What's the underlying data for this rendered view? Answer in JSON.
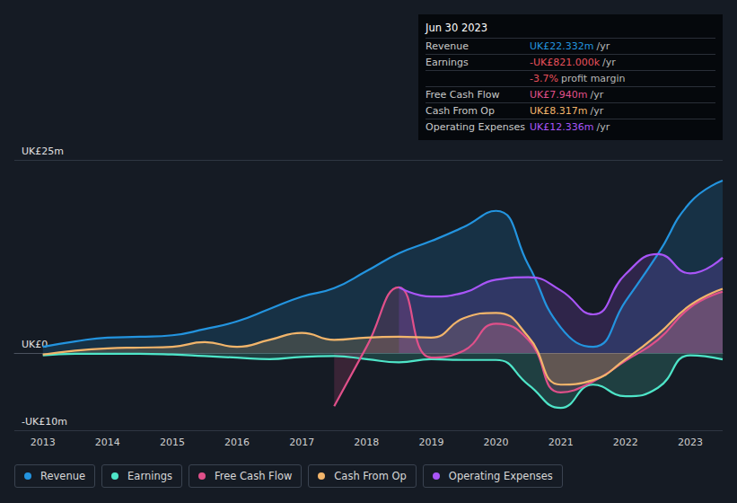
{
  "chart_data": {
    "type": "line",
    "x": [
      2013,
      2013.5,
      2014,
      2014.5,
      2015,
      2015.5,
      2016,
      2016.5,
      2017,
      2017.5,
      2018,
      2018.5,
      2019,
      2019.5,
      2020,
      2020.5,
      2021,
      2021.5,
      2022,
      2022.5,
      2023,
      2023.5
    ],
    "xlim": [
      2012.56,
      2023.5
    ],
    "xticks": [
      2013,
      2014,
      2015,
      2016,
      2017,
      2018,
      2019,
      2020,
      2021,
      2022,
      2023
    ],
    "ylim": [
      -10,
      25
    ],
    "yticks": [
      {
        "value": -10,
        "label": "-UK£10m"
      },
      {
        "value": 0,
        "label": "UK£0"
      },
      {
        "value": 25,
        "label": "UK£25m"
      }
    ],
    "grid": true,
    "legend": "bottom-left",
    "series": [
      {
        "name": "Revenue",
        "color": "#2394df",
        "values": [
          0.8,
          1.5,
          2.0,
          2.1,
          2.3,
          3.1,
          4.1,
          5.7,
          7.3,
          8.4,
          10.6,
          12.9,
          14.5,
          16.3,
          18.4,
          11.4,
          3.3,
          0.8,
          6.7,
          12.8,
          19.5,
          22.33
        ]
      },
      {
        "name": "Earnings",
        "color": "#4ee5c8",
        "values": [
          -0.3,
          -0.1,
          -0.1,
          -0.1,
          -0.2,
          -0.4,
          -0.6,
          -0.8,
          -0.5,
          -0.4,
          -0.8,
          -1.2,
          -0.8,
          -0.9,
          -0.9,
          -4.1,
          -7.1,
          -4.1,
          -5.6,
          -4.5,
          -0.3,
          -0.82
        ]
      },
      {
        "name": "Free Cash Flow",
        "color": "#e0508a",
        "values": [
          null,
          null,
          null,
          null,
          null,
          null,
          null,
          null,
          null,
          -6.9,
          0.8,
          8.5,
          -0.6,
          0.3,
          3.8,
          1.7,
          -5.1,
          -3.7,
          -1.0,
          1.7,
          5.9,
          7.94
        ]
      },
      {
        "name": "Cash From Op",
        "color": "#f2b56b",
        "values": [
          -0.2,
          0.3,
          0.6,
          0.7,
          0.8,
          1.4,
          0.8,
          1.7,
          2.6,
          1.7,
          2.0,
          2.1,
          2.0,
          4.5,
          5.2,
          2.1,
          -4.1,
          -3.5,
          -0.8,
          2.4,
          6.2,
          8.32
        ]
      },
      {
        "name": "Operating Expenses",
        "color": "#a855f7",
        "values": [
          null,
          null,
          null,
          null,
          null,
          null,
          null,
          null,
          null,
          null,
          null,
          8.5,
          7.3,
          7.8,
          9.5,
          9.8,
          8.1,
          5.0,
          10.2,
          12.8,
          10.3,
          12.34
        ]
      }
    ],
    "annotations": {
      "title": "Jun 30 2023",
      "rows": [
        {
          "label": "Revenue",
          "value": "UK£22.332m",
          "unit": "/yr",
          "color": "#2394df"
        },
        {
          "label": "Earnings",
          "value": "-UK£821.000k",
          "unit": "/yr",
          "color": "#e8505b"
        },
        {
          "value": "-3.7%",
          "unit": "profit margin",
          "color": "#e8505b"
        },
        {
          "label": "Free Cash Flow",
          "value": "UK£7.940m",
          "unit": "/yr",
          "color": "#e0508a"
        },
        {
          "label": "Cash From Op",
          "value": "UK£8.317m",
          "unit": "/yr",
          "color": "#f2b56b"
        },
        {
          "label": "Operating Expenses",
          "value": "UK£12.336m",
          "unit": "/yr",
          "color": "#a855f7"
        }
      ]
    }
  }
}
